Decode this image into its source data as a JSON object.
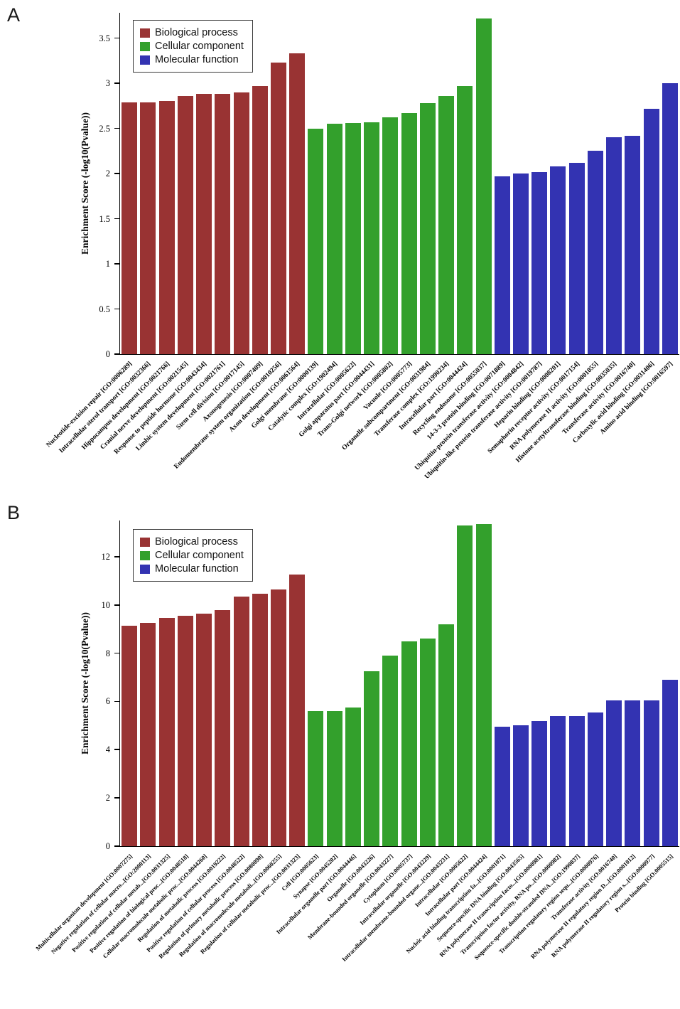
{
  "chart_data": [
    {
      "type": "bar",
      "panel": "A",
      "ylabel": "Enrichment Score (-log10(Pvalue))",
      "yticks": [
        0,
        0.5,
        1,
        1.5,
        2,
        2.5,
        3,
        3.5
      ],
      "ylim": [
        0,
        3.78
      ],
      "grid": false,
      "legend_position": "top-left-inside",
      "series": [
        {
          "name": "Biological process",
          "color": "#993333",
          "categories": [
            "Nucleotide-excision repair [GO:0006289]",
            "Intracellular sterol transport [GO:0032366]",
            "Hippocampus development [GO:0021766]",
            "Cranial nerve development [GO:0021545]",
            "Response to peptide hormone [GO:0043434]",
            "Limbic system development [GO:0021761]",
            "Stem cell division [GO:0017145]",
            "Axonogenesis [GO:0007409]",
            "Endomembrane system organization [GO:0010256]",
            "Axon development [GO:0061564]"
          ],
          "values": [
            2.79,
            2.79,
            2.8,
            2.86,
            2.88,
            2.88,
            2.9,
            2.97,
            3.23,
            3.33
          ]
        },
        {
          "name": "Cellular component",
          "color": "#33a02c",
          "categories": [
            "Golgi membrane [GO:0000139]",
            "Catalytic complex [GO:1902494]",
            "Intracellular [GO:0005622]",
            "Golgi apparatus part [GO:0044431]",
            "Trans-Golgi network [GO:0005802]",
            "Vacuole [GO:0005773]",
            "Organelle subcompartment [GO:0031984]",
            "Transferase complex [GO:1990234]",
            "Intracellular part [GO:0044424]",
            "Recycling endosome [GO:0055037]"
          ],
          "values": [
            2.5,
            2.55,
            2.56,
            2.57,
            2.62,
            2.67,
            2.78,
            2.86,
            2.97,
            3.72
          ]
        },
        {
          "name": "Molecular function",
          "color": "#3333b2",
          "categories": [
            "14-3-3 protein binding [GO:0071889]",
            "Ubiquitin-protein transferase activity [GO:0004842]",
            "Ubiquitin-like protein transferase activity [GO:0019787]",
            "Heparin binding [GO:0008201]",
            "Semaphorin receptor activity [GO:0017154]",
            "RNA polymerase II activity [GO:0001055]",
            "Histone acetyltransferase binding [GO:0035035]",
            "Transferase activity [GO:0016740]",
            "Carboxylic acid binding [GO:0031406]",
            "Amino acid binding [GO:0016597]"
          ],
          "values": [
            1.97,
            2.0,
            2.02,
            2.08,
            2.12,
            2.25,
            2.4,
            2.42,
            2.72,
            3.0
          ]
        }
      ]
    },
    {
      "type": "bar",
      "panel": "B",
      "ylabel": "Enrichment Score (-log10(Pvalue))",
      "yticks": [
        0,
        2,
        4,
        6,
        8,
        10,
        12
      ],
      "ylim": [
        0,
        13.5
      ],
      "grid": false,
      "legend_position": "top-left-inside",
      "series": [
        {
          "name": "Biological process",
          "color": "#993333",
          "categories": [
            "Multicellular organism development [GO:0007275]",
            "Negative regulation of cellular macro...[GO:2000113]",
            "Positive regulation of cellular metab...[GO:0031325]",
            "Positive regulation of biological proc...[GO:0048518]",
            "Cellular macromolecule metabolic proc...[GO:0044260]",
            "Regulation of metabolic process [GO:0019222]",
            "Positive regulation of cellular process [GO:0048522]",
            "Regulation of primary metabolic process [GO:0080090]",
            "Regulation of macromolecule metaboli...[GO:0060255]",
            "Regulation of cellular metabolic proc...[GO:0031323]"
          ],
          "values": [
            9.15,
            9.25,
            9.45,
            9.55,
            9.65,
            9.8,
            10.35,
            10.45,
            10.65,
            11.25
          ]
        },
        {
          "name": "Cellular component",
          "color": "#33a02c",
          "categories": [
            "Cell [GO:0005623]",
            "Synapse [GO:0045202]",
            "Intracellular organelle part [GO:0044446]",
            "Organelle [GO:0043226]",
            "Membrane-bounded organelle [GO:0043227]",
            "Cytoplasm [GO:0005737]",
            "Intracellular organelle [GO:0043229]",
            "Intracellular membrane-bounded organe...[GO:0043231]",
            "Intracellular [GO:0005622]",
            "Intracellular part [GO:0044424]"
          ],
          "values": [
            5.6,
            5.6,
            5.75,
            7.25,
            7.9,
            8.5,
            8.6,
            9.2,
            13.3,
            13.35
          ]
        },
        {
          "name": "Molecular function",
          "color": "#3333b2",
          "categories": [
            "Nucleic acid binding transcription fa...[GO:0001071]",
            "Sequence-specific DNA binding [GO:0043565]",
            "RNA polymerase II transcription facto...[GO:0000981]",
            "Transcription factor activity, RNA po...[GO:0000982]",
            "Sequence-specific double-stranded DNA...[GO:1990837]",
            "Transcription regulatory region sequ...[GO:0000976]",
            "Transferase activity [GO:0016740]",
            "RNA polymerase II regulatory region D...[GO:0001012]",
            "RNA polymerase II regulatory region s...[GO:0000977]",
            "Protein binding [GO:0005515]"
          ],
          "values": [
            4.95,
            5.0,
            5.2,
            5.4,
            5.4,
            5.55,
            6.05,
            6.05,
            6.05,
            6.9
          ]
        }
      ]
    }
  ]
}
